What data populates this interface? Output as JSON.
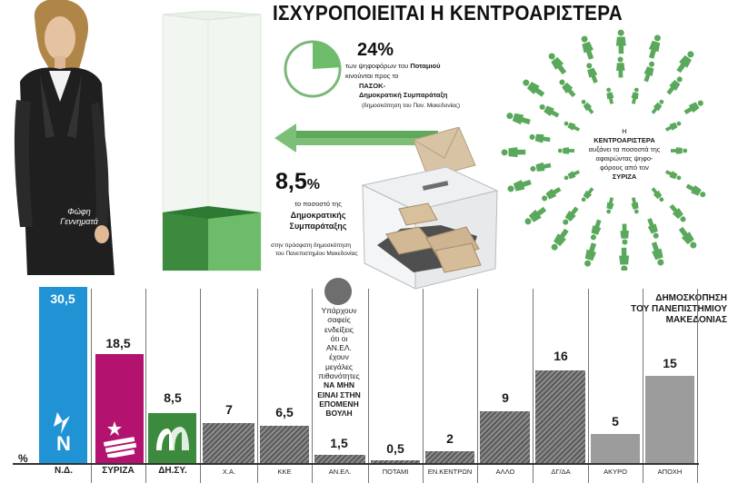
{
  "headline": "ΙΣΧΥΡΟΠΟΙΕΙΤΑΙ Η ΚΕΝΤΡΟΑΡΙΣΤΕΡΑ",
  "photo_caption": [
    "Φώφη",
    "Γεννηματά"
  ],
  "potami_box": {
    "percent": "24%",
    "line1_pre": "των ψηφοφόρων του ",
    "line1_bold": "Ποταμιού",
    "line2": "κινούνται προς το",
    "line3": "ΠΑΣΟΚ-",
    "line4": "Δημοκρατική Συμπαράταξη",
    "source": "(δημοσκόπηση του Παν. Μακεδονίας)",
    "pie_share": 0.24
  },
  "dem_box": {
    "percent_main": "8,5",
    "percent_sign": "%",
    "line1": "το ποσοστό της",
    "line2": "Δημοκρατικής",
    "line3": "Συμπαράταξης",
    "line4": "στην πρόσφατη δημοσκόπηση",
    "line5": "του Πανεπιστημίου Μακεδονίας"
  },
  "center_text": {
    "l1": "Η",
    "l2": "ΚΕΝΤΡΟΑΡΙΣΤΕΡΑ",
    "l3": "αυξάνει τα ποσοστά της",
    "l4": "αφαιρώντας ψηφο-",
    "l5": "φόρους από τον",
    "l6": "ΣΥΡΙΖΑ"
  },
  "survey_title": [
    "ΔΗΜΟΣΚΟΠΗΣΗ",
    "ΤΟΥ ΠΑΝΕΠΙΣΤΗΜΙΟΥ ΜΑΚΕΔΟΝΙΑΣ"
  ],
  "anel_note": {
    "l1": "Υπάρχουν",
    "l2": "σαφείς",
    "l3": "ενδείξεις",
    "l4": "ότι οι",
    "l5": "ΑΝ.ΕΛ.",
    "l6": "έχουν",
    "l7": "μεγάλες",
    "l8": "πιθανότητες",
    "l9": "ΝΑ ΜΗΝ",
    "l10": "ΕΙΝΑΙ ΣΤΗΝ",
    "l11": "ΕΠΟΜΕΝΗ",
    "l12": "ΒΟΥΛΗ"
  },
  "logo_text": [
    "Ν",
    "Δ"
  ],
  "axis_unit": "%",
  "colors": {
    "nd": "#2093d4",
    "syriza": "#b3136f",
    "dem": "#3c8a3e",
    "accent_green": "#5aa85c",
    "hatch": "#6b6b6b"
  },
  "chart_data": {
    "type": "bar",
    "categories": [
      "Ν.Δ.",
      "ΣΥΡΙΖΑ",
      "ΔΗ.ΣΥ.",
      "Χ.Α.",
      "ΚΚΕ",
      "ΑΝ.ΕΛ.",
      "ΠΟΤΑΜΙ",
      "ΕΝ.ΚΕΝΤΡΩΝ",
      "ΑΛΛΟ",
      "ΔΓ/ΔΑ",
      "ΑΚΥΡΟ",
      "ΑΠΟΧΗ"
    ],
    "values": [
      30.5,
      18.5,
      8.5,
      7,
      6.5,
      1.5,
      0.5,
      2,
      9,
      16,
      5,
      15
    ],
    "labels": [
      "30,5",
      "18,5",
      "8,5",
      "7",
      "6,5",
      "1,5",
      "0,5",
      "2",
      "9",
      "16",
      "5",
      "15"
    ],
    "ylabel": "%"
  }
}
